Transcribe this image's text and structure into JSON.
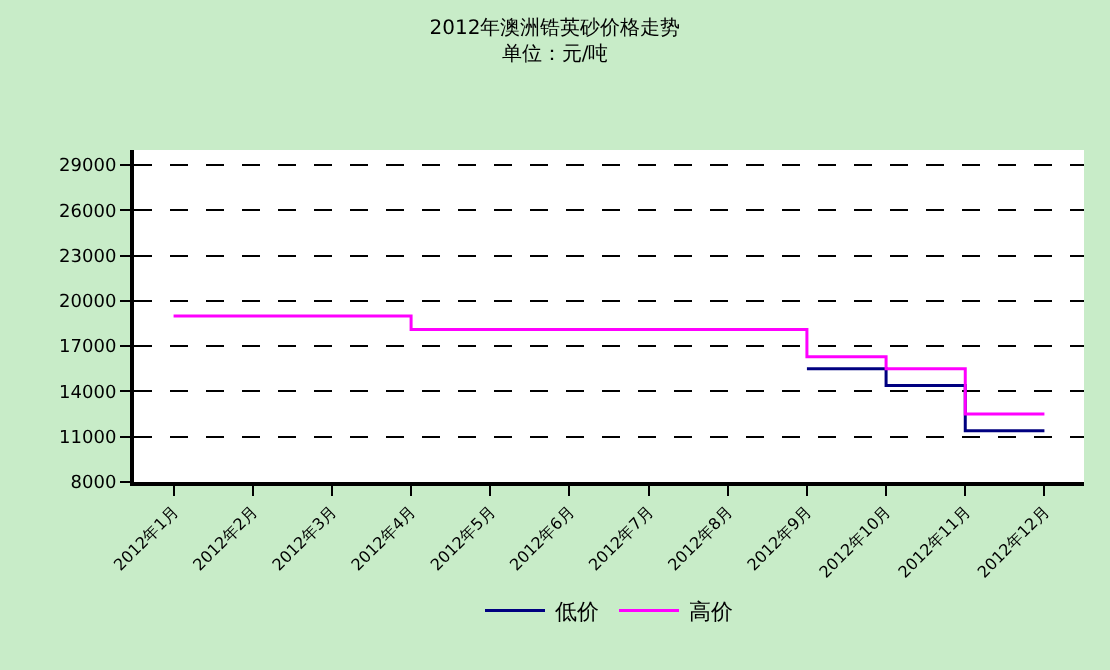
{
  "chart_data": {
    "type": "step",
    "title": "2012年澳洲锆英砂价格走势",
    "subtitle": "单位：元/吨",
    "categories": [
      "2012年1月",
      "2012年2月",
      "2012年3月",
      "2012年4月",
      "2012年5月",
      "2012年6月",
      "2012年7月",
      "2012年8月",
      "2012年9月",
      "2012年10月",
      "2012年11月",
      "2012年12月"
    ],
    "series": [
      {
        "name": "低价",
        "color": "#000080",
        "values": [
          null,
          null,
          null,
          null,
          null,
          null,
          null,
          null,
          15500,
          14400,
          11400,
          11400
        ]
      },
      {
        "name": "高价",
        "color": "#ff00ff",
        "values": [
          19000,
          19000,
          19000,
          18100,
          18100,
          18100,
          18100,
          18100,
          16300,
          15500,
          12500,
          12500
        ]
      }
    ],
    "ylim": [
      8000,
      30000
    ],
    "yticks": [
      8000,
      11000,
      14000,
      17000,
      20000,
      23000,
      26000,
      29000
    ],
    "grid": "y",
    "legend": "bottom",
    "line_style": "solid",
    "marker": "none"
  }
}
